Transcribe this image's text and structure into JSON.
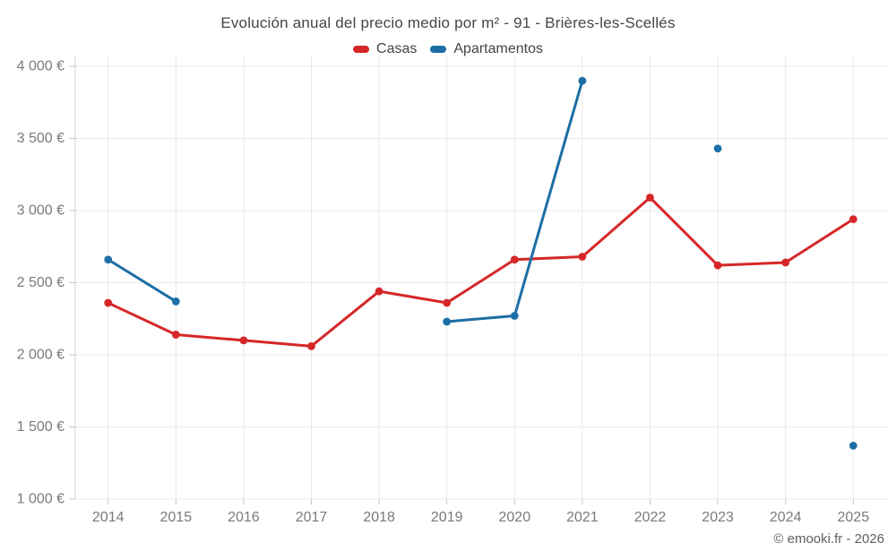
{
  "title": "Evolución anual del precio medio por m² - 91 - Brières-les-Scellés",
  "copyright": "© emooki.fr - 2026",
  "colors": {
    "casas": "#d62728",
    "apartamentos": "#1c6ea4",
    "grid": "#e8e8e8",
    "axis": "#d4d4d4",
    "tick": "#c4c4c4",
    "tick_text": "#7a7a7a"
  },
  "chart_data": {
    "type": "line",
    "title": "Evolución anual del precio medio por m² - 91 - Brières-les-Scellés",
    "x": [
      2014,
      2015,
      2016,
      2017,
      2018,
      2019,
      2020,
      2021,
      2022,
      2023,
      2024,
      2025
    ],
    "series": [
      {
        "name": "Casas",
        "color": "#d62728",
        "values": [
          2360,
          2140,
          2100,
          2060,
          2440,
          2360,
          2660,
          2680,
          3090,
          2620,
          2640,
          2940
        ]
      },
      {
        "name": "Apartamentos",
        "color": "#1c6ea4",
        "values": [
          2660,
          2370,
          null,
          null,
          null,
          2230,
          2270,
          3900,
          null,
          3430,
          null,
          1370
        ]
      }
    ],
    "yticks": [
      1000,
      1500,
      2000,
      2500,
      3000,
      3500,
      4000
    ],
    "ytick_labels": [
      "1 000 €",
      "1 500 €",
      "2 000 €",
      "2 500 €",
      "3 000 €",
      "3 500 €",
      "4 000 €"
    ],
    "ylim": [
      1000,
      4000
    ],
    "xlabel": "",
    "ylabel": "",
    "grid": true,
    "legend_position": "top",
    "marker": "circle"
  }
}
